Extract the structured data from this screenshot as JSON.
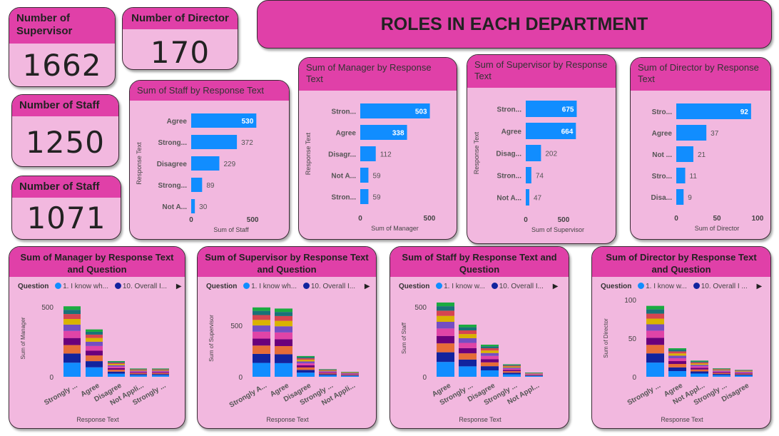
{
  "title": "ROLES IN EACH DEPARTMENT",
  "kpis": {
    "supervisor": {
      "label": "Number of Supervisor",
      "value": "1662"
    },
    "director": {
      "label": "Number of Director",
      "value": "170"
    },
    "staff1": {
      "label": "Number of Staff",
      "value": "1250"
    },
    "staff2": {
      "label": "Number of Staff",
      "value": "1071"
    }
  },
  "legend": {
    "label": "Question",
    "items": [
      "1. I know wh...",
      "10. Overall I..."
    ],
    "items_short": [
      "1. I know w...",
      "10. Overall I ..."
    ],
    "colors": [
      "#118dff",
      "#12239e"
    ]
  },
  "colors": {
    "accent": "#e040a8",
    "card": "#f2b8df",
    "bar": "#118dff",
    "stack": [
      "#118dff",
      "#12239e",
      "#e66c37",
      "#6b007b",
      "#e044a7",
      "#744ec2",
      "#d9b300",
      "#d64550",
      "#197278",
      "#1aab40"
    ]
  },
  "chart_data": [
    {
      "id": "staff",
      "type": "bar",
      "title": "Sum of Staff by Response Text",
      "xlabel": "Sum of Staff",
      "ylabel": "Response Text",
      "categories": [
        "Agree",
        "Strong...",
        "Disagree",
        "Strong...",
        "Not A..."
      ],
      "values": [
        530,
        372,
        229,
        89,
        30
      ],
      "xlim": [
        0,
        650
      ],
      "ticks": [
        "0",
        "500"
      ],
      "tick_values": [
        0,
        500
      ]
    },
    {
      "id": "manager",
      "type": "bar",
      "title": "Sum of Manager by Response Text",
      "xlabel": "Sum of Manager",
      "ylabel": "Response Text",
      "categories": [
        "Stron...",
        "Agree",
        "Disagr...",
        "Not A...",
        "Stron..."
      ],
      "values": [
        503,
        338,
        112,
        59,
        59
      ],
      "xlim": [
        0,
        500
      ],
      "ticks": [
        "0",
        "500"
      ],
      "tick_values": [
        0,
        500
      ]
    },
    {
      "id": "supervisor",
      "type": "bar",
      "title": "Sum of Supervisor by Response Text",
      "xlabel": "Sum of Supervisor",
      "ylabel": "Response Text",
      "categories": [
        "Stron...",
        "Agree",
        "Disag...",
        "Stron...",
        "Not A..."
      ],
      "values": [
        675,
        664,
        202,
        74,
        47
      ],
      "xlim": [
        0,
        850
      ],
      "ticks": [
        "0",
        "500"
      ],
      "tick_values": [
        0,
        500
      ]
    },
    {
      "id": "director",
      "type": "bar",
      "title": "Sum of Director by Response Text",
      "xlabel": "Sum of Director",
      "ylabel": "",
      "categories": [
        "Stro...",
        "Agree",
        "Not ...",
        "Stro...",
        "Disa..."
      ],
      "values": [
        92,
        37,
        21,
        11,
        9
      ],
      "xlim": [
        0,
        100
      ],
      "ticks": [
        "0",
        "50",
        "100"
      ],
      "tick_values": [
        0,
        50,
        100
      ]
    },
    {
      "id": "manager_q",
      "type": "bar",
      "stacked": true,
      "title": "Sum of Manager by Response Text and Question",
      "xlabel": "Response Text",
      "ylabel": "Sum of Manager",
      "categories": [
        "Strongly ...",
        "Agree",
        "Disagree",
        "Not Appli...",
        "Strongly ..."
      ],
      "totals": [
        503,
        338,
        112,
        59,
        59
      ],
      "ylim": [
        0,
        550
      ],
      "ticks": [
        "0",
        "500"
      ],
      "tick_values": [
        0,
        500
      ]
    },
    {
      "id": "supervisor_q",
      "type": "bar",
      "stacked": true,
      "title": "Sum of Supervisor by Response Text and Question",
      "xlabel": "Response Text",
      "ylabel": "Sum of Supervisor",
      "categories": [
        "Strongly A...",
        "Agree",
        "Disagree",
        "Strongly ...",
        "Not Appli..."
      ],
      "totals": [
        675,
        664,
        202,
        74,
        47
      ],
      "ylim": [
        0,
        750
      ],
      "ticks": [
        "0",
        "500"
      ],
      "tick_values": [
        0,
        500
      ]
    },
    {
      "id": "staff_q",
      "type": "bar",
      "stacked": true,
      "title": "Sum of Staff by Response Text and Question",
      "xlabel": "Response Text",
      "ylabel": "Sum of Staff",
      "categories": [
        "Agree",
        "Strongly ...",
        "Disagree",
        "Strongly ...",
        "Not Appl..."
      ],
      "totals": [
        530,
        372,
        229,
        89,
        30
      ],
      "ylim": [
        0,
        550
      ],
      "ticks": [
        "0",
        "500"
      ],
      "tick_values": [
        0,
        500
      ]
    },
    {
      "id": "director_q",
      "type": "bar",
      "stacked": true,
      "title": "Sum of Director by Response Text and Question",
      "xlabel": "Response Text",
      "ylabel": "Sum of Director",
      "categories": [
        "Strongly ...",
        "Agree",
        "Not Appl...",
        "Strongly ...",
        "Disagree"
      ],
      "totals": [
        92,
        37,
        21,
        11,
        9
      ],
      "ylim": [
        0,
        100
      ],
      "ticks": [
        "0",
        "50",
        "100"
      ],
      "tick_values": [
        0,
        50,
        100
      ]
    }
  ]
}
